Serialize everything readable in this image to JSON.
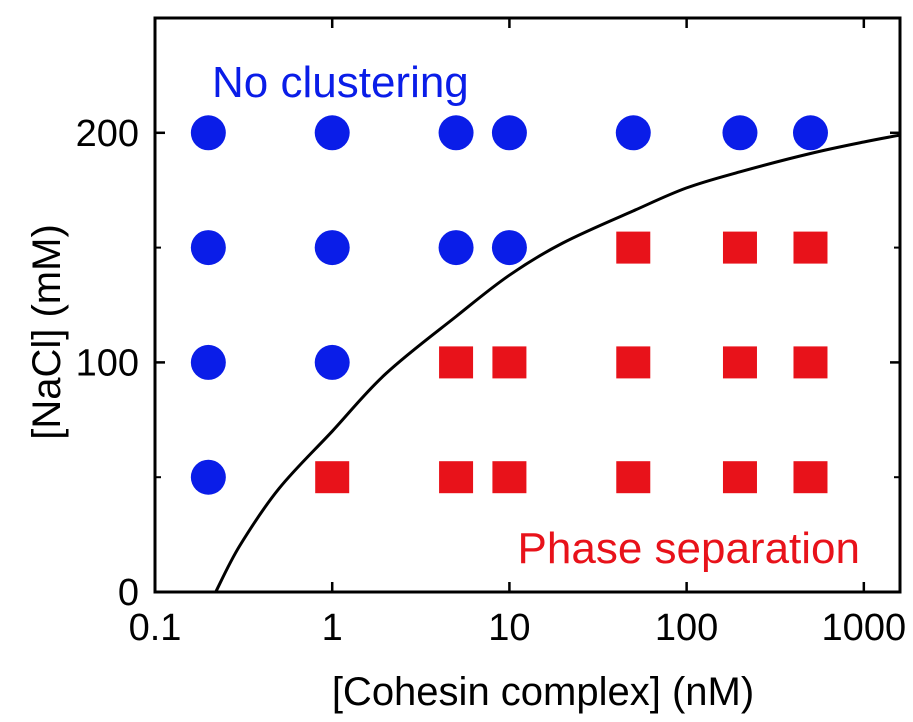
{
  "chart_data": {
    "type": "scatter",
    "title": "",
    "xlabel": "[Cohesin complex] (nM)",
    "ylabel": "[NaCl] (mM)",
    "x_scale": "log",
    "xlim": [
      0.1,
      1600
    ],
    "ylim": [
      0,
      250
    ],
    "x_ticks": [
      {
        "value": 0.1,
        "label": "0.1"
      },
      {
        "value": 1,
        "label": "1"
      },
      {
        "value": 10,
        "label": "10"
      },
      {
        "value": 100,
        "label": "100"
      },
      {
        "value": 1000,
        "label": "1000"
      }
    ],
    "y_ticks": [
      {
        "value": 0,
        "label": "0"
      },
      {
        "value": 100,
        "label": "100"
      },
      {
        "value": 200,
        "label": "200"
      }
    ],
    "y_minor_ticks": [
      50,
      150
    ],
    "grid": false,
    "series": [
      {
        "marker": "circle",
        "color": "#0a1de8",
        "points": [
          [
            0.2,
            200
          ],
          [
            1,
            200
          ],
          [
            5,
            200
          ],
          [
            10,
            200
          ],
          [
            50,
            200
          ],
          [
            200,
            200
          ],
          [
            500,
            200
          ],
          [
            0.2,
            150
          ],
          [
            1,
            150
          ],
          [
            5,
            150
          ],
          [
            10,
            150
          ],
          [
            0.2,
            100
          ],
          [
            1,
            100
          ],
          [
            0.2,
            50
          ]
        ]
      },
      {
        "marker": "square",
        "color": "#e8121a",
        "points": [
          [
            50,
            150
          ],
          [
            200,
            150
          ],
          [
            500,
            150
          ],
          [
            5,
            100
          ],
          [
            10,
            100
          ],
          [
            50,
            100
          ],
          [
            200,
            100
          ],
          [
            500,
            100
          ],
          [
            1,
            50
          ],
          [
            5,
            50
          ],
          [
            10,
            50
          ],
          [
            50,
            50
          ],
          [
            200,
            50
          ],
          [
            500,
            50
          ]
        ]
      }
    ],
    "boundary_curve": {
      "color": "#000000",
      "points": [
        [
          0.22,
          0
        ],
        [
          0.3,
          20
        ],
        [
          0.5,
          45
        ],
        [
          1,
          70
        ],
        [
          2,
          95
        ],
        [
          5,
          120
        ],
        [
          10,
          138
        ],
        [
          20,
          152
        ],
        [
          50,
          166
        ],
        [
          100,
          176
        ],
        [
          200,
          183
        ],
        [
          500,
          191
        ],
        [
          1000,
          196
        ],
        [
          1600,
          199
        ]
      ]
    },
    "annotations": [
      {
        "text": "No clustering",
        "color": "#0a1de8"
      },
      {
        "text": "Phase separation",
        "color": "#e8121a"
      }
    ]
  }
}
